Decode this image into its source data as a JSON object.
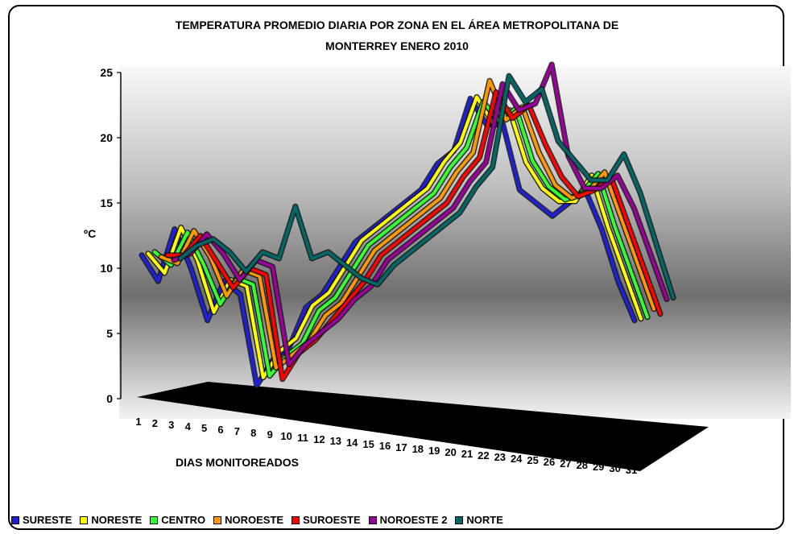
{
  "chart_data": {
    "type": "line",
    "title": "TEMPERATURA PROMEDIO DIARIA  POR ZONA EN EL ÁREA METROPOLITANA DE MONTERREY ENERO 2010",
    "title_lines": [
      "TEMPERATURA PROMEDIO DIARIA  POR ZONA EN EL ÁREA METROPOLITANA DE",
      "MONTERREY ENERO 2010"
    ],
    "xlabel": "DIAS MONITOREADOS",
    "ylabel": "ºC",
    "ylim": [
      0,
      25
    ],
    "yticks": [
      "0",
      "5",
      "10",
      "15",
      "20",
      "25"
    ],
    "categories": [
      "1",
      "2",
      "3",
      "4",
      "5",
      "6",
      "7",
      "8",
      "9",
      "10",
      "11",
      "12",
      "13",
      "14",
      "15",
      "16",
      "17",
      "18",
      "19",
      "20",
      "21",
      "22",
      "23",
      "24",
      "25",
      "26",
      "27",
      "28",
      "29",
      "30",
      "31"
    ],
    "legend_position": "bottom",
    "series": [
      {
        "name": "SURESTE",
        "color": "#1f1fd6",
        "values": [
          11,
          9,
          13,
          10,
          6,
          9,
          8,
          1,
          3,
          4,
          7,
          8,
          10,
          12,
          13,
          14,
          15,
          16,
          18,
          19,
          23,
          21,
          21,
          16,
          15,
          14,
          15,
          16,
          13,
          9,
          6
        ]
      },
      {
        "name": "NORESTE",
        "color": "#ffff00",
        "values": [
          11,
          9.5,
          13,
          10.5,
          6.5,
          9,
          8.5,
          1.5,
          3.5,
          4.5,
          7,
          8,
          10,
          12,
          13,
          14,
          15,
          16,
          18,
          19.5,
          23,
          21,
          22,
          18,
          16,
          15,
          15,
          17,
          13,
          9.5,
          6
        ]
      },
      {
        "name": "CENTRO",
        "color": "#33ff33",
        "values": [
          11,
          10,
          12.5,
          10,
          7,
          9,
          8.5,
          1.5,
          3,
          4,
          6.5,
          7.5,
          9.5,
          11.5,
          12.5,
          13.5,
          14.5,
          15.5,
          17.5,
          19,
          22.5,
          21,
          22,
          18,
          16,
          15,
          15.5,
          17,
          13,
          9.5,
          6
        ]
      },
      {
        "name": "NOROESTE",
        "color": "#ff9900",
        "values": [
          10.5,
          10,
          12.5,
          10.5,
          7.5,
          9.5,
          9,
          2,
          3,
          4,
          6,
          7,
          9,
          11,
          12,
          13,
          14,
          15,
          17,
          18.5,
          24,
          21,
          22,
          18.5,
          16,
          15,
          15.5,
          17,
          13.5,
          10,
          6.5
        ]
      },
      {
        "name": "SUROESTE",
        "color": "#ff0000",
        "values": [
          10.5,
          10.5,
          12,
          10,
          8,
          9.5,
          9,
          1,
          3,
          4,
          5.5,
          7,
          8.5,
          10.5,
          11.5,
          12.5,
          13.5,
          14.5,
          16.5,
          18,
          23,
          21,
          22,
          19,
          16.5,
          15,
          15.5,
          16.5,
          13,
          9.5,
          6
        ]
      },
      {
        "name": "NOROESTE 2",
        "color": "#990099",
        "values": [
          10,
          10.5,
          12,
          10.5,
          8.5,
          10,
          9.5,
          2,
          3.5,
          4.5,
          5.5,
          7,
          8,
          10,
          11,
          12,
          13,
          14,
          16,
          17.5,
          23.5,
          21.5,
          22,
          25,
          18,
          15.5,
          15.5,
          16.5,
          14,
          10.5,
          7
        ]
      },
      {
        "name": "NORTE",
        "color": "#006666",
        "values": [
          10,
          11,
          11.5,
          10.5,
          9,
          10.5,
          10,
          14,
          10,
          10.5,
          9.5,
          8.5,
          8,
          9.5,
          10.5,
          11.5,
          12.5,
          13.5,
          15.5,
          17,
          24,
          22,
          23,
          19,
          17.5,
          16,
          16,
          18,
          15,
          11,
          7
        ]
      }
    ]
  }
}
